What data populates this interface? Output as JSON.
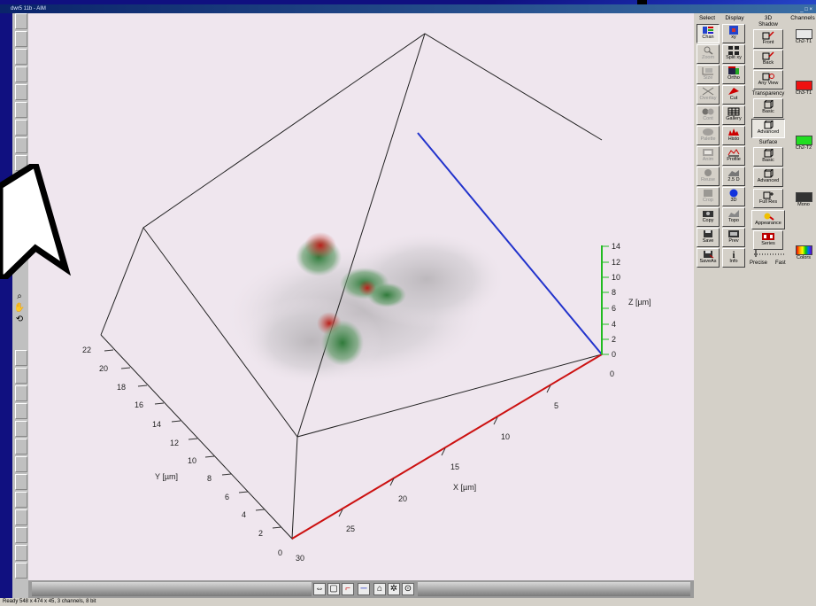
{
  "window": {
    "title": "dwr5 11b - AIM",
    "controls": "_ □ ×"
  },
  "status_bar": {
    "text": "Ready  548 x 474 x 45, 3 channels, 8 bit"
  },
  "plot": {
    "z_axis": {
      "label": "Z [µm]",
      "ticks": [
        "0",
        "2",
        "4",
        "6",
        "8",
        "10",
        "12",
        "14"
      ]
    },
    "x_axis": {
      "label": "X [µm]",
      "ticks": [
        "0",
        "5",
        "10",
        "15",
        "20",
        "25",
        "30"
      ]
    },
    "y_axis": {
      "label": "Y [µm]",
      "ticks": [
        "2",
        "4",
        "6",
        "8",
        "10",
        "12",
        "14",
        "16",
        "18",
        "20",
        "22"
      ]
    },
    "colors": {
      "x_axis": "#cc1111",
      "y_axis": "#2233cc",
      "z_axis": "#22bb22",
      "box": "#222222",
      "background": "#efe6ee"
    }
  },
  "panel": {
    "headers": {
      "select": "Select",
      "display": "Display",
      "threed": "3D",
      "channels": "Channels"
    },
    "select_buttons": [
      {
        "label": "Chan",
        "icon": "channels-icon",
        "state": "selected"
      },
      {
        "label": "Zoom",
        "icon": "zoom-icon",
        "state": "disabled"
      },
      {
        "label": "Size",
        "icon": "size-icon",
        "state": "disabled"
      },
      {
        "label": "Overlay",
        "icon": "overlay-icon",
        "state": "disabled"
      },
      {
        "label": "Cont",
        "icon": "contrast-icon",
        "state": "disabled"
      },
      {
        "label": "Palette",
        "icon": "palette-icon",
        "state": "disabled"
      },
      {
        "label": "Anim",
        "icon": "animation-icon",
        "state": "disabled"
      },
      {
        "label": "Reuse",
        "icon": "reuse-icon",
        "state": "disabled"
      },
      {
        "label": "Crop",
        "icon": "crop-icon",
        "state": "disabled"
      },
      {
        "label": "Copy",
        "icon": "copy-icon",
        "state": "normal"
      },
      {
        "label": "Save",
        "icon": "save-icon",
        "state": "normal"
      },
      {
        "label": "SaveAs",
        "icon": "save-as-icon",
        "state": "normal"
      }
    ],
    "display_buttons": [
      {
        "label": "xy",
        "icon": "xy-icon"
      },
      {
        "label": "Split xy",
        "icon": "split-xy-icon"
      },
      {
        "label": "Ortho",
        "icon": "ortho-icon"
      },
      {
        "label": "Cut",
        "icon": "cut-icon"
      },
      {
        "label": "Gallery",
        "icon": "gallery-icon"
      },
      {
        "label": "Histo",
        "icon": "histogram-icon"
      },
      {
        "label": "Profile",
        "icon": "profile-icon"
      },
      {
        "label": "2.5 D",
        "icon": "2-5d-icon"
      },
      {
        "label": "3D",
        "icon": "3d-icon"
      },
      {
        "label": "Topo",
        "icon": "topo-icon"
      },
      {
        "label": "Prev",
        "icon": "preview-icon"
      },
      {
        "label": "Info",
        "icon": "info-icon"
      }
    ],
    "threed": {
      "shadow_title": "Shadow",
      "shadow_buttons": [
        "Front",
        "Back",
        "Any View"
      ],
      "transparency_title": "Transparency",
      "transparency_buttons": [
        "Basic",
        "Advanced"
      ],
      "surface_title": "Surface",
      "surface_buttons": [
        "Basic",
        "Advanced"
      ],
      "full_res": "Full Res",
      "appearance": "Appearance",
      "series": "Series",
      "precise": "Precise",
      "fast": "Fast"
    },
    "channels": [
      {
        "label": "Ch2-T1",
        "color": "#e8e8e8"
      },
      {
        "label": "Ch3-T1",
        "color": "#ee1111"
      },
      {
        "label": "Ch2-T2",
        "color": "#22dd22"
      },
      {
        "label": "Mono",
        "color": "#333333"
      },
      {
        "label": "Colors",
        "color": "rainbow"
      }
    ]
  },
  "view_toolbar": {
    "icons": [
      "rotate-icon",
      "box-icon",
      "x-axis-icon",
      "y-axis-icon",
      "home-icon",
      "light-icon",
      "reset-icon"
    ]
  }
}
